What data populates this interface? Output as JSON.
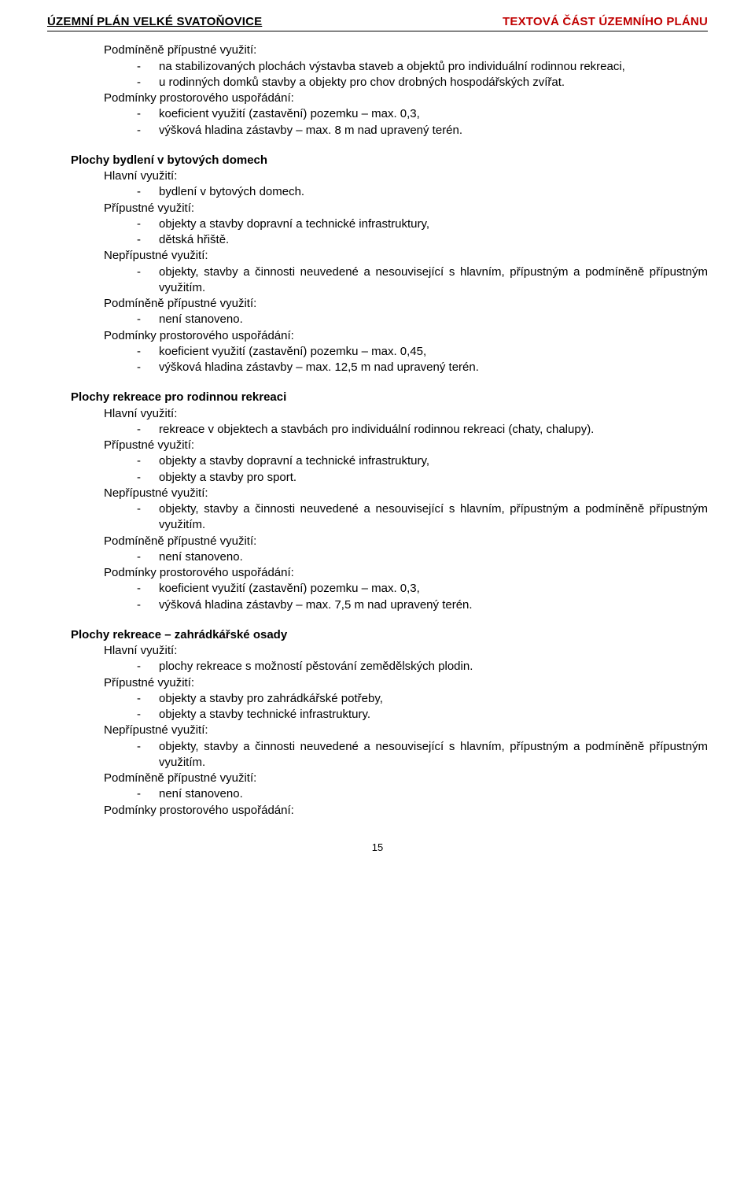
{
  "header": {
    "left": "ÚZEMNÍ PLÁN VELKÉ SVATOŇOVICE",
    "right": "TEXTOVÁ ČÁST ÚZEMNÍHO PLÁNU"
  },
  "sections": {
    "intro": {
      "podminene_label": "Podmíněně přípustné využití:",
      "podminene_items": [
        "na stabilizovaných plochách výstavba staveb a objektů pro individuální rodinnou rekreaci,",
        "u rodinných domků stavby a objekty pro chov drobných hospodářských zvířat."
      ],
      "podminky_label": "Podmínky prostorového uspořádání:",
      "podminky_items": [
        "koeficient využití (zastavění) pozemku – max. 0,3,",
        "výšková hladina zástavby – max. 8 m nad upravený terén."
      ]
    },
    "bytove": {
      "heading": "Plochy bydlení v bytových domech",
      "hlavni_label": "Hlavní využití:",
      "hlavni_items": [
        "bydlení v bytových domech."
      ],
      "pripustne_label": "Přípustné využití:",
      "pripustne_items": [
        "objekty a stavby dopravní a technické infrastruktury,",
        "dětská hřiště."
      ],
      "nepripustne_label": "Nepřípustné využití:",
      "nepripustne_items": [
        "objekty, stavby a činnosti neuvedené a nesouvisející s hlavním, přípustným a podmíněně přípustným využitím."
      ],
      "podminene_label": "Podmíněně přípustné využití:",
      "podminene_items": [
        "není stanoveno."
      ],
      "podminky_label": "Podmínky prostorového uspořádání:",
      "podminky_items": [
        "koeficient využití (zastavění) pozemku – max. 0,45,",
        "výšková hladina zástavby – max. 12,5 m nad upravený terén."
      ]
    },
    "rodinna": {
      "heading": "Plochy rekreace pro rodinnou rekreaci",
      "hlavni_label": "Hlavní využití:",
      "hlavni_items": [
        "rekreace v objektech a stavbách pro individuální rodinnou rekreaci (chaty, chalupy)."
      ],
      "pripustne_label": "Přípustné využití:",
      "pripustne_items": [
        "objekty a stavby dopravní a technické infrastruktury,",
        "objekty a stavby pro sport."
      ],
      "nepripustne_label": "Nepřípustné využití:",
      "nepripustne_items": [
        "objekty, stavby a činnosti neuvedené a nesouvisející s hlavním, přípustným a podmíněně přípustným využitím."
      ],
      "podminene_label": "Podmíněně přípustné využití:",
      "podminene_items": [
        "není stanoveno."
      ],
      "podminky_label": "Podmínky prostorového uspořádání:",
      "podminky_items": [
        "koeficient využití (zastavění) pozemku – max. 0,3,",
        "výšková hladina zástavby – max. 7,5 m nad upravený terén."
      ]
    },
    "zahradky": {
      "heading": "Plochy rekreace – zahrádkářské osady",
      "hlavni_label": "Hlavní využití:",
      "hlavni_items": [
        "plochy rekreace s možností pěstování zemědělských plodin."
      ],
      "pripustne_label": "Přípustné využití:",
      "pripustne_items": [
        "objekty a stavby pro zahrádkářské potřeby,",
        "objekty a stavby technické infrastruktury."
      ],
      "nepripustne_label": "Nepřípustné využití:",
      "nepripustne_items": [
        "objekty, stavby a činnosti neuvedené a nesouvisející s hlavním, přípustným a podmíněně přípustným využitím."
      ],
      "podminene_label": "Podmíněně přípustné využití:",
      "podminene_items": [
        "není stanoveno."
      ],
      "podminky_label": "Podmínky prostorového uspořádání:"
    }
  },
  "footer": {
    "page_number": "15"
  }
}
